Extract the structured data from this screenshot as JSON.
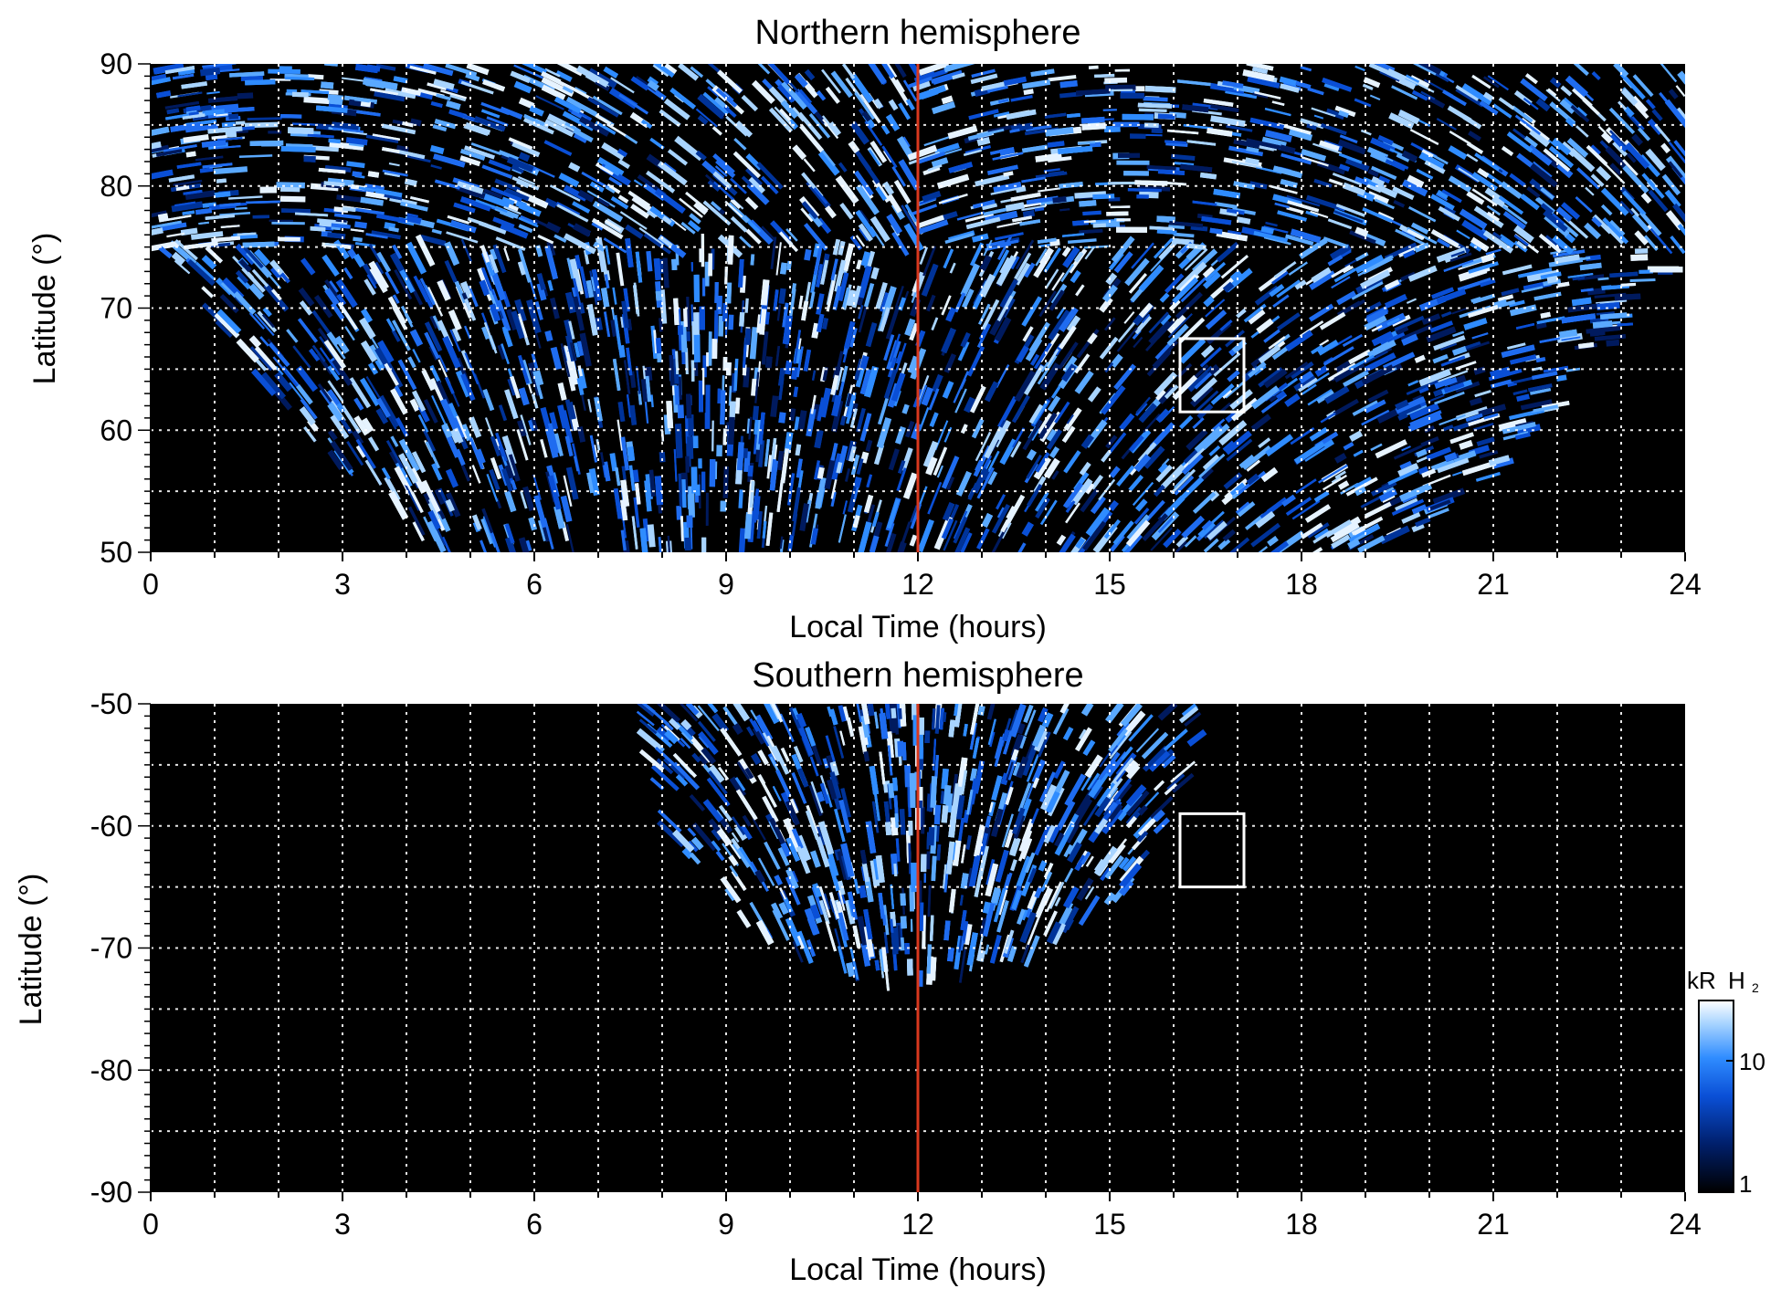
{
  "chart_data": [
    {
      "type": "heatmap",
      "title": "Northern hemisphere",
      "xlabel": "Local Time (hours)",
      "ylabel": "Latitude (°)",
      "xlim": [
        0,
        24
      ],
      "ylim": [
        50,
        90
      ],
      "xticks": [
        "0",
        "3",
        "6",
        "9",
        "12",
        "15",
        "18",
        "21",
        "24"
      ],
      "yticks": [
        "50",
        "60",
        "70",
        "80",
        "90"
      ],
      "grid": true,
      "reference_line": {
        "local_time": 12,
        "color": "#d9381e"
      },
      "box": {
        "local_time": [
          16.1,
          17.1
        ],
        "latitude": [
          61.5,
          67.5
        ]
      },
      "coverage": {
        "lt_at_50": [
          4.8,
          19.3
        ],
        "lt_at_75": [
          0,
          24
        ]
      }
    },
    {
      "type": "heatmap",
      "title": "Southern hemisphere",
      "xlabel": "Local Time (hours)",
      "ylabel": "Latitude (°)",
      "xlim": [
        0,
        24
      ],
      "ylim": [
        -90,
        -50
      ],
      "xticks": [
        "0",
        "3",
        "6",
        "9",
        "12",
        "15",
        "18",
        "21",
        "24"
      ],
      "yticks": [
        "-50",
        "-60",
        "-70",
        "-80",
        "-90"
      ],
      "grid": true,
      "reference_line": {
        "local_time": 12,
        "color": "#d9381e"
      },
      "box": {
        "local_time": [
          16.1,
          17.1
        ],
        "latitude": [
          -65,
          -59
        ]
      },
      "coverage": {
        "lt_at_-50": [
          7.6,
          16.4
        ],
        "min_latitude": -72.5
      }
    }
  ],
  "colorbar": {
    "label_unit": "kR",
    "label_species": "H",
    "label_subscript": "2",
    "ticks": [
      "1",
      "10"
    ],
    "scale": "log",
    "colors": [
      "#000000",
      "#001f6b",
      "#0a4fd6",
      "#2f8cff",
      "#a8d4ff",
      "#ffffff"
    ]
  }
}
